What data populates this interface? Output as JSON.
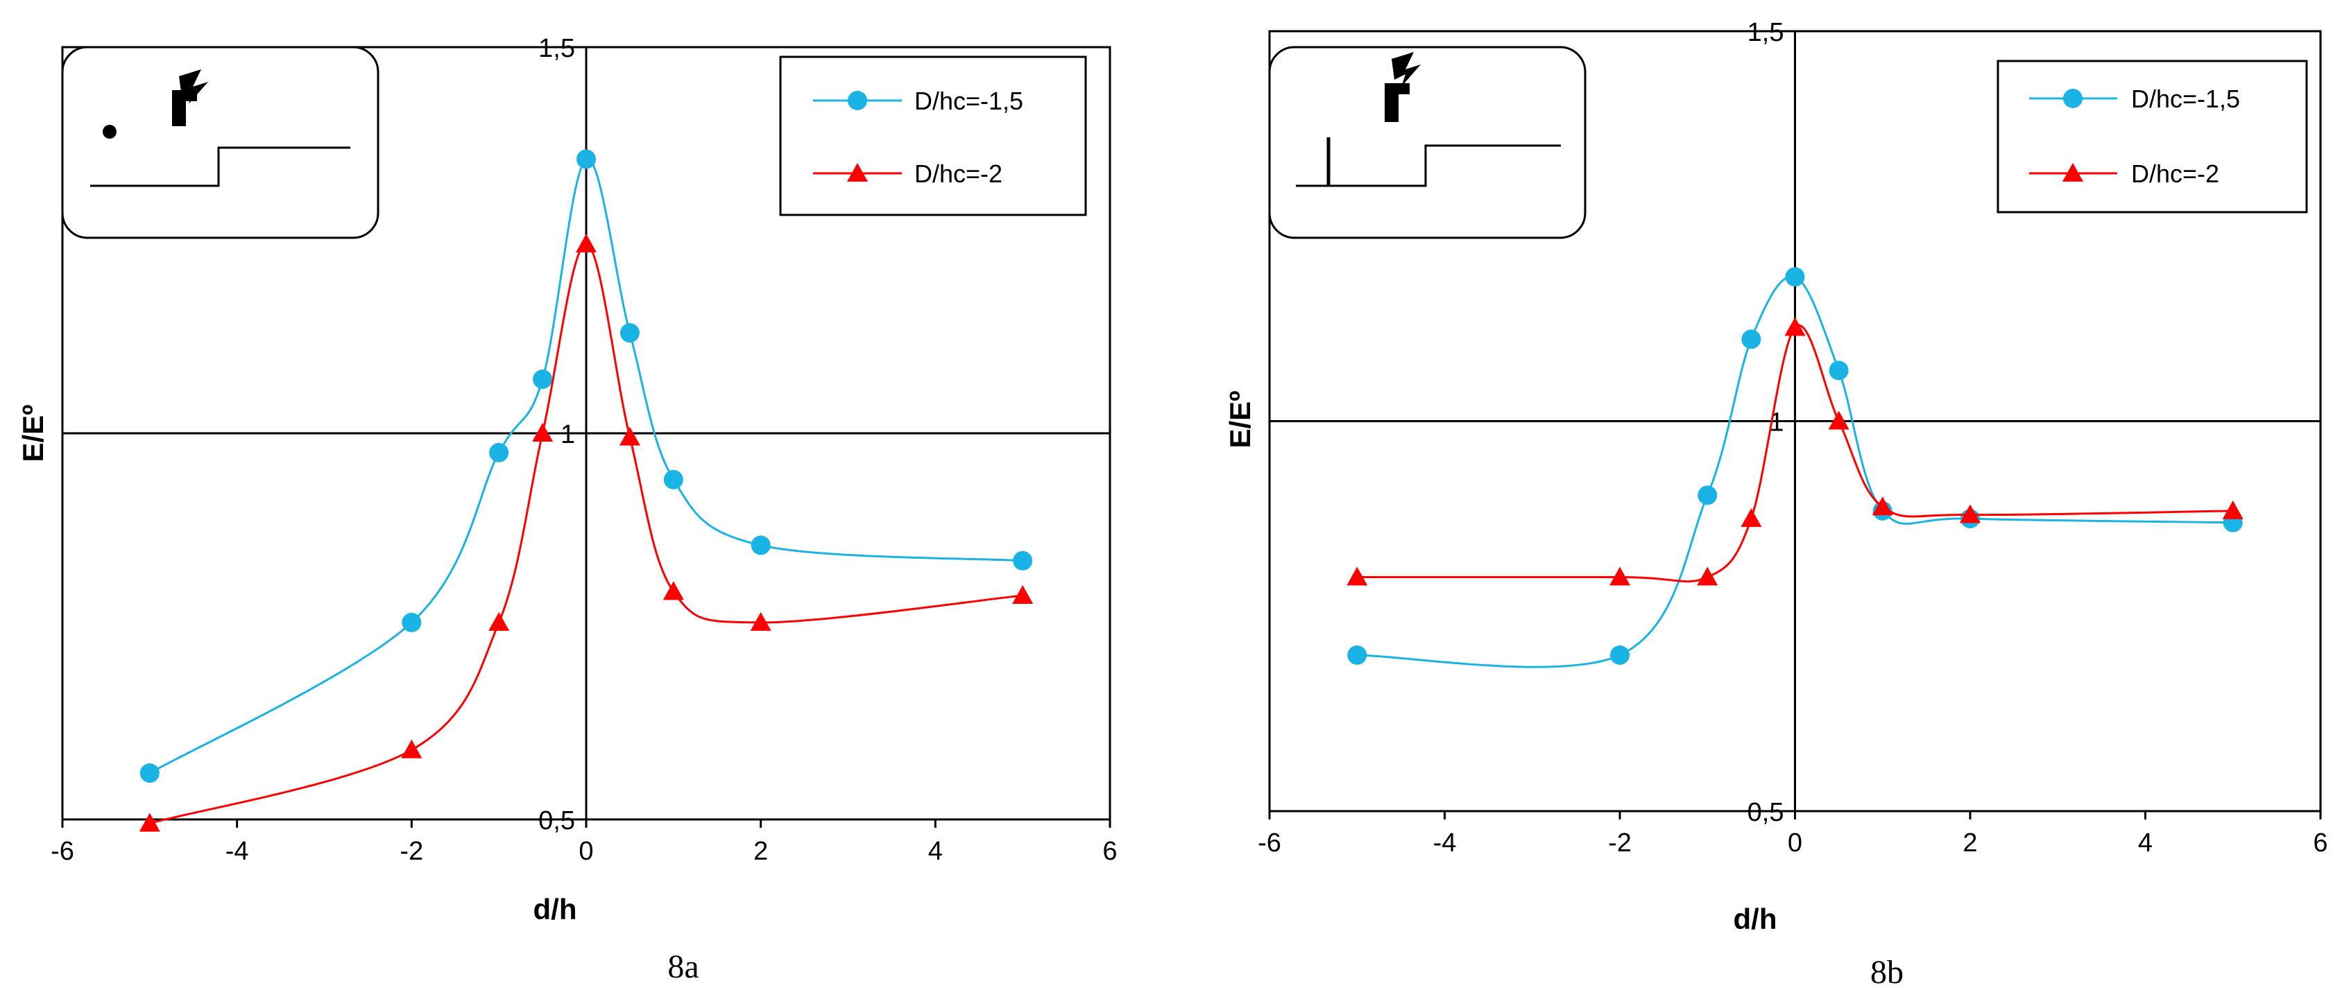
{
  "chart_data": [
    {
      "type": "line",
      "caption": "8a",
      "xlabel": "d/h",
      "ylabel": "E/Eº",
      "xlim": [
        -6,
        6
      ],
      "ylim": [
        0.5,
        1.5
      ],
      "xticks": [
        "-6",
        "-4",
        "-2",
        "0",
        "2",
        "4",
        "6"
      ],
      "yticks": [
        "0,5",
        "1",
        "1,5"
      ],
      "inset_icon": "wave-generator-with-floating-point-and-step-icon",
      "series": [
        {
          "name": "D/hc=-1,5",
          "color": "#1ab3e6",
          "marker": "circle",
          "points": [
            [
              -5,
              0.56
            ],
            [
              -2,
              0.755
            ],
            [
              -1,
              0.975
            ],
            [
              -0.5,
              1.07
            ],
            [
              0,
              1.355
            ],
            [
              0.5,
              1.13
            ],
            [
              1,
              0.94
            ],
            [
              2,
              0.855
            ],
            [
              5,
              0.835
            ]
          ]
        },
        {
          "name": "D/hc=-2",
          "color": "#ff0000",
          "marker": "triangle",
          "points": [
            [
              -5,
              0.495
            ],
            [
              -2,
              0.59
            ],
            [
              -1,
              0.755
            ],
            [
              -0.5,
              1.0
            ],
            [
              0,
              1.245
            ],
            [
              0.5,
              0.995
            ],
            [
              1,
              0.795
            ],
            [
              2,
              0.755
            ],
            [
              5,
              0.79
            ]
          ]
        }
      ]
    },
    {
      "type": "line",
      "caption": "8b",
      "xlabel": "d/h",
      "ylabel": "E/Eº",
      "xlim": [
        -6,
        6
      ],
      "ylim": [
        0.5,
        1.5
      ],
      "xticks": [
        "-6",
        "-4",
        "-2",
        "0",
        "2",
        "4",
        "6"
      ],
      "yticks": [
        "0,5",
        "1",
        "1,5"
      ],
      "inset_icon": "wave-generator-with-vertical-barrier-and-step-icon",
      "series": [
        {
          "name": "D/hc=-1,5",
          "color": "#1ab3e6",
          "marker": "circle",
          "points": [
            [
              -5,
              0.7
            ],
            [
              -2,
              0.7
            ],
            [
              -1,
              0.905
            ],
            [
              -0.5,
              1.105
            ],
            [
              0,
              1.185
            ],
            [
              0.5,
              1.065
            ],
            [
              1,
              0.885
            ],
            [
              2,
              0.875
            ],
            [
              5,
              0.87
            ]
          ]
        },
        {
          "name": "D/hc=-2",
          "color": "#ff0000",
          "marker": "triangle",
          "points": [
            [
              -5,
              0.8
            ],
            [
              -2,
              0.8
            ],
            [
              -1,
              0.8
            ],
            [
              -0.5,
              0.875
            ],
            [
              0,
              1.12
            ],
            [
              0.5,
              1.0
            ],
            [
              1,
              0.89
            ],
            [
              2,
              0.88
            ],
            [
              5,
              0.885
            ]
          ]
        }
      ]
    }
  ]
}
